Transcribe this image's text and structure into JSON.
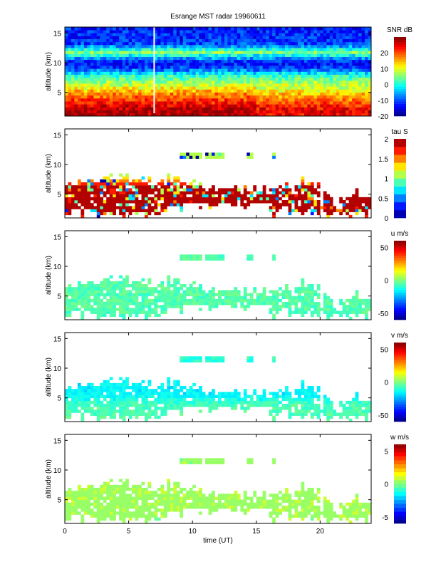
{
  "title": "Esrange MST radar 19960611",
  "chart_data": {
    "type": "heatmap",
    "title": "Esrange MST radar 19960611",
    "xlabel": "time (UT)",
    "xlim": [
      0,
      24
    ],
    "xticks": [
      "0",
      "5",
      "10",
      "15",
      "20"
    ],
    "xtick_values": [
      0,
      5,
      10,
      15,
      20
    ],
    "panels": [
      {
        "id": "snr",
        "ylabel": "altitude (km)",
        "ylim": [
          1,
          16
        ],
        "yticks": [
          "5",
          "10",
          "15"
        ],
        "ytick_values": [
          5,
          10,
          15
        ],
        "colorbar_label": "SNR dB",
        "clim": [
          -20,
          30
        ],
        "cticks": [
          "20",
          "10",
          "0",
          "-10",
          "-20"
        ],
        "ctick_values": [
          20,
          10,
          0,
          -10,
          -20
        ],
        "levels": 32,
        "profile_altitudes": [
          1,
          2,
          3,
          4,
          5,
          6,
          7,
          8,
          9,
          10,
          11,
          11.7,
          12.5,
          13,
          14,
          15,
          16
        ],
        "profile_values": [
          27,
          28,
          24,
          20,
          16,
          10,
          5,
          0,
          -10,
          -14,
          -4,
          6,
          -3,
          -10,
          -12,
          -12,
          -13
        ],
        "coverage": "full",
        "data_gap_time": 7
      },
      {
        "id": "tau",
        "ylabel": "altitude (km)",
        "ylim": [
          1,
          16
        ],
        "yticks": [
          "5",
          "10",
          "15"
        ],
        "ytick_values": [
          5,
          10,
          15
        ],
        "colorbar_label": "tau S",
        "clim": [
          0,
          2
        ],
        "cticks": [
          "2",
          "1.5",
          "1",
          "0.5",
          "0"
        ],
        "ctick_values": [
          2,
          1.5,
          1,
          0.5,
          0
        ],
        "levels": 10,
        "profile_altitudes": [
          1,
          2,
          3,
          4,
          5,
          6,
          7,
          8,
          11.5
        ],
        "profile_values": [
          1.6,
          1.9,
          2,
          2,
          2,
          2,
          1.7,
          1.2,
          1.0
        ],
        "coverage": "sparse"
      },
      {
        "id": "u",
        "ylabel": "altitude (km)",
        "ylim": [
          1,
          16
        ],
        "yticks": [
          "5",
          "10",
          "15"
        ],
        "ytick_values": [
          5,
          10,
          15
        ],
        "colorbar_label": "u m/s",
        "clim": [
          -60,
          60
        ],
        "cticks": [
          "50",
          "0",
          "-50"
        ],
        "ctick_values": [
          50,
          0,
          -50
        ],
        "levels": 32,
        "profile_altitudes": [
          1,
          4,
          8,
          11.5
        ],
        "profile_values": [
          -6,
          -5,
          -5,
          -5
        ],
        "coverage": "sparse"
      },
      {
        "id": "v",
        "ylabel": "altitude (km)",
        "ylim": [
          1,
          16
        ],
        "yticks": [
          "5",
          "10",
          "15"
        ],
        "ytick_values": [
          5,
          10,
          15
        ],
        "colorbar_label": "v m/s",
        "clim": [
          -60,
          60
        ],
        "cticks": [
          "50",
          "0",
          "-50"
        ],
        "ctick_values": [
          50,
          0,
          -50
        ],
        "levels": 32,
        "profile_altitudes": [
          1,
          4,
          5,
          6,
          8,
          11.5
        ],
        "profile_values": [
          -5,
          -7,
          -14,
          -16,
          -15,
          -10
        ],
        "coverage": "sparse"
      },
      {
        "id": "w",
        "ylabel": "altitude (km)",
        "ylim": [
          1,
          16
        ],
        "yticks": [
          "5",
          "10",
          "15"
        ],
        "ytick_values": [
          5,
          10,
          15
        ],
        "colorbar_label": "w m/s",
        "clim": [
          -6,
          6
        ],
        "cticks": [
          "5",
          "0",
          "-5"
        ],
        "ctick_values": [
          5,
          0,
          -5
        ],
        "levels": 20,
        "profile_altitudes": [
          1,
          4,
          8,
          11.5
        ],
        "profile_values": [
          0.3,
          0.4,
          0.4,
          0.3
        ],
        "coverage": "sparse"
      }
    ]
  }
}
